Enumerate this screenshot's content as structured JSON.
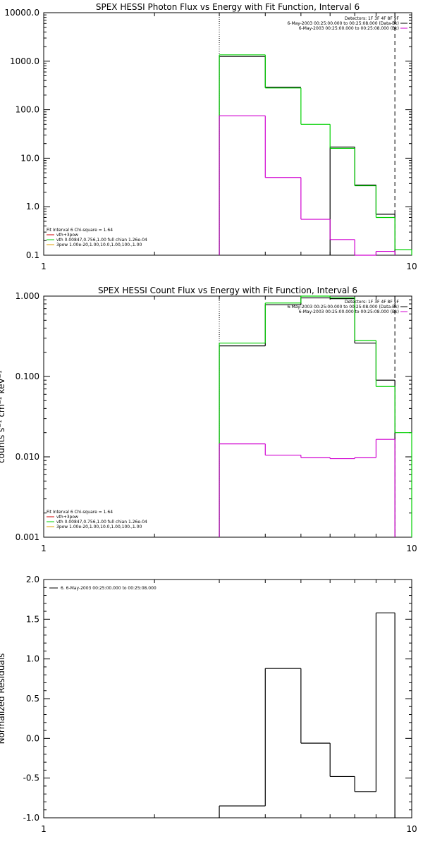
{
  "colors": {
    "black": "#000000",
    "green": "#00d000",
    "magenta": "#d000d0",
    "red": "#d00000",
    "orange": "#e0a000"
  },
  "chart_data": [
    {
      "type": "line",
      "title": "SPEX HESSI Photon Flux vs Energy with Fit Function, Interval 6",
      "xlabel": "",
      "ylabel": "",
      "xscale": "log",
      "yscale": "log",
      "xlim": [
        1,
        10
      ],
      "ylim": [
        0.1,
        10000
      ],
      "xticks": [
        {
          "v": 1,
          "label": "1"
        },
        {
          "v": 10,
          "label": "10"
        }
      ],
      "yticks": [
        {
          "v": 0.1,
          "label": "0.1"
        },
        {
          "v": 1,
          "label": "1.0"
        },
        {
          "v": 10,
          "label": "10.0"
        },
        {
          "v": 100,
          "label": "100.0"
        },
        {
          "v": 1000,
          "label": "1000.0"
        },
        {
          "v": 10000,
          "label": "10000.0"
        }
      ],
      "vlines": [
        {
          "x": 3,
          "style": "dotted"
        },
        {
          "x": 9,
          "style": "dashed"
        }
      ],
      "legend_top_right": [
        "Detectors: 1F 3F 4F 8F 9F",
        "6-May-2003 00:25:00.000 to 00:25:08.000 (Data-Bk)",
        "6-May-2003 00:25:00.000 to 00:25:08.000 (Bk)"
      ],
      "legend_bottom_left": [
        "Fit Interval 6    Chi-square = 1.64",
        "vth+3pow",
        "vth 0.00847,0.756,1.00  full chian 1.26e-04",
        "3pow 1.00e-20,1.00,10.0,1.00,100.,1.00"
      ],
      "series": [
        {
          "color": "black",
          "edges": [
            3,
            4,
            5,
            6,
            7,
            8,
            9
          ],
          "values": [
            1250,
            290,
            null,
            17,
            2.8,
            0.7
          ]
        },
        {
          "color": "green",
          "edges": [
            3,
            4,
            5,
            6,
            7,
            8,
            9,
            10
          ],
          "values": [
            1350,
            280,
            50,
            16,
            2.7,
            0.6,
            0.13
          ]
        },
        {
          "color": "magenta",
          "edges": [
            3,
            4,
            5,
            6,
            7,
            8,
            9
          ],
          "values": [
            75,
            4,
            0.55,
            0.21,
            0.09,
            0.12
          ]
        }
      ]
    },
    {
      "type": "line",
      "title": "SPEX HESSI Count Flux vs Energy with Fit Function, Interval 6",
      "xlabel": "",
      "ylabel": "counts s⁻¹ cm⁻² keV⁻¹",
      "xscale": "log",
      "yscale": "log",
      "xlim": [
        1,
        10
      ],
      "ylim": [
        0.001,
        1
      ],
      "xticks": [
        {
          "v": 1,
          "label": "1"
        },
        {
          "v": 10,
          "label": "10"
        }
      ],
      "yticks": [
        {
          "v": 0.001,
          "label": "0.001"
        },
        {
          "v": 0.01,
          "label": "0.010"
        },
        {
          "v": 0.1,
          "label": "0.100"
        },
        {
          "v": 1,
          "label": "1.000"
        }
      ],
      "vlines": [
        {
          "x": 3,
          "style": "dotted"
        },
        {
          "x": 9,
          "style": "dashed"
        }
      ],
      "legend_top_right": [
        "Detectors: 1F 3F 4F 8F 9F",
        "6-May-2003 00:25:00.000 to 00:25:08.000 (Data-Bk)",
        "6-May-2003 00:25:00.000 to 00:25:08.000 (Bk)"
      ],
      "legend_bottom_left": [
        "Fit Interval 6    Chi-square = 1.64",
        "vth+3pow",
        "vth 0.00847,0.756,1.00  full chian 1.26e-04",
        "3pow 1.00e-20,1.00,10.0,1.00,100.,1.00"
      ],
      "series": [
        {
          "color": "black",
          "edges": [
            3,
            4,
            5,
            6,
            7,
            8,
            9
          ],
          "values": [
            0.24,
            0.78,
            0.95,
            0.93,
            0.26,
            0.09
          ]
        },
        {
          "color": "green",
          "edges": [
            3,
            4,
            5,
            6,
            7,
            8,
            9,
            10
          ],
          "values": [
            0.26,
            0.82,
            1.0,
            0.95,
            0.28,
            0.075,
            0.02
          ]
        },
        {
          "color": "magenta",
          "edges": [
            3,
            4,
            5,
            6,
            7,
            8,
            9
          ],
          "values": [
            0.0145,
            0.0105,
            0.0098,
            0.0095,
            0.0098,
            0.0165
          ]
        }
      ]
    },
    {
      "type": "line",
      "title": "",
      "xlabel": "",
      "ylabel": "Normalized Residuals",
      "xscale": "log",
      "yscale": "linear",
      "xlim": [
        1,
        10
      ],
      "ylim": [
        -1.0,
        2.0
      ],
      "xticks": [
        {
          "v": 1,
          "label": "1"
        },
        {
          "v": 10,
          "label": "10"
        }
      ],
      "yticks": [
        {
          "v": -1.0,
          "label": "-1.0"
        },
        {
          "v": -0.5,
          "label": "-0.5"
        },
        {
          "v": 0,
          "label": "0.0"
        },
        {
          "v": 0.5,
          "label": "0.5"
        },
        {
          "v": 1.0,
          "label": "1.0"
        },
        {
          "v": 1.5,
          "label": "1.5"
        },
        {
          "v": 2.0,
          "label": "2.0"
        }
      ],
      "vlines": [],
      "legend_top_left": [
        "6.  6-May-2003 00:25:00.000 to 00:25:08.000"
      ],
      "series": [
        {
          "color": "black",
          "edges": [
            3,
            4,
            5,
            6,
            7,
            8,
            9
          ],
          "values": [
            -0.85,
            0.88,
            -0.06,
            -0.48,
            -0.67,
            1.58
          ]
        }
      ]
    }
  ]
}
